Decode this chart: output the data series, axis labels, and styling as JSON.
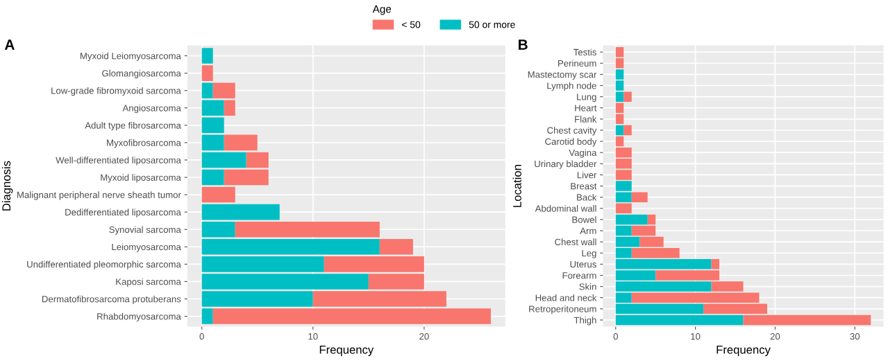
{
  "chart_data": [
    {
      "type": "bar",
      "orientation": "horizontal",
      "stacked": true,
      "title": "A",
      "xlabel": "Frequency",
      "ylabel": "Diagnosis",
      "legend": "top",
      "legend_title": "Age",
      "grid": true,
      "categories": [
        "Myxoid Leiomyosarcoma",
        "Glomangiosarcoma",
        "Low-grade fibromyxoid sarcoma",
        "Angiosarcoma",
        "Adult type fibrosarcoma",
        "Myxofibrosarcoma",
        "Well-differentiated liposarcoma",
        "Myxoid liposarcoma",
        "Malignant peripheral nerve sheath tumor",
        "Dedifferentiated liposarcoma",
        "Synovial sarcoma",
        "Leiomyosarcoma",
        "Undifferentiated pleomorphic sarcoma",
        "Kaposi sarcoma",
        "Dermatofibrosarcoma protuberans",
        "Rhabdomyosarcoma"
      ],
      "series": [
        {
          "name": "50 or more",
          "color": "#00bfc4",
          "values": [
            1,
            0,
            1,
            2,
            2,
            2,
            4,
            2,
            0,
            7,
            3,
            16,
            11,
            15,
            10,
            1
          ]
        },
        {
          "name": "< 50",
          "color": "#f8766d",
          "values": [
            0,
            1,
            2,
            1,
            0,
            3,
            2,
            4,
            3,
            0,
            13,
            3,
            9,
            5,
            12,
            25
          ]
        }
      ],
      "xlim": [
        -1.3,
        27.3
      ],
      "xticks": [
        0,
        10,
        20
      ]
    },
    {
      "type": "bar",
      "orientation": "horizontal",
      "stacked": true,
      "title": "B",
      "xlabel": "Frequency",
      "ylabel": "Location",
      "grid": true,
      "categories": [
        "Testis",
        "Perineum",
        "Mastectomy scar",
        "Lymph node",
        "Lung",
        "Heart",
        "Flank",
        "Chest cavity",
        "Carotid body",
        "Vagina",
        "Urinary bladder",
        "Liver",
        "Breast",
        "Back",
        "Abdominal wall",
        "Bowel",
        "Arm",
        "Chest wall",
        "Leg",
        "Uterus",
        "Forearm",
        "Skin",
        "Head and neck",
        "Retroperitoneum",
        "Thigh"
      ],
      "series": [
        {
          "color": "#00bfc4",
          "values": [
            0,
            0,
            1,
            1,
            1,
            0,
            0,
            1,
            0,
            0,
            0,
            0,
            2,
            2,
            0,
            4,
            2,
            3,
            2,
            12,
            5,
            12,
            2,
            11,
            16
          ]
        },
        {
          "color": "#f8766d",
          "values": [
            1,
            1,
            0,
            0,
            1,
            1,
            1,
            1,
            1,
            2,
            2,
            2,
            0,
            2,
            2,
            1,
            3,
            3,
            6,
            1,
            8,
            4,
            16,
            8,
            16
          ]
        }
      ],
      "xlim": [
        -1.6,
        33.6
      ],
      "xticks": [
        0,
        10,
        20,
        30
      ]
    }
  ]
}
